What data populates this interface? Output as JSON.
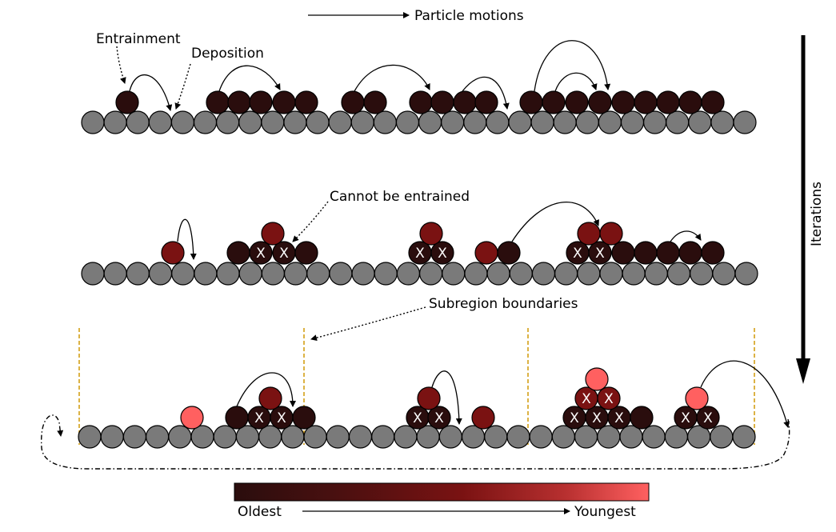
{
  "labels": {
    "particle_motions": "Particle motions",
    "entrainment": "Entrainment",
    "deposition": "Deposition",
    "cannot_be_entrained": "Cannot be entrained",
    "subregion_boundaries": "Subregion boundaries",
    "iterations": "Iterations",
    "oldest": "Oldest",
    "youngest": "Youngest"
  },
  "colors": {
    "bed_particle": "#7a7a7a",
    "age_gradient": [
      "#2a0d0d",
      "#4a1010",
      "#7a1212",
      "#b83030",
      "#ff6060"
    ],
    "subregion_boundary": "#d4a017",
    "marker": "#ffffff"
  },
  "marker_glyph": "X"
}
